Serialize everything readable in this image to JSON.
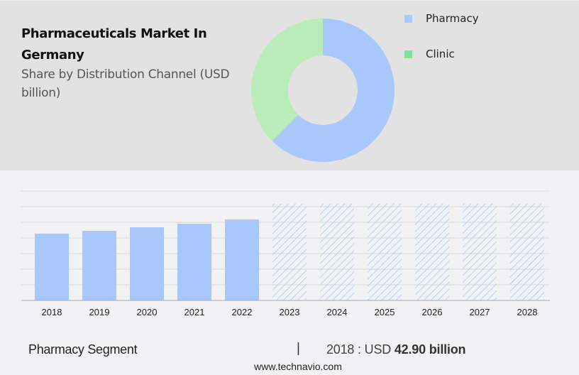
{
  "header": {
    "title": "Pharmaceuticals Market In Germany",
    "subtitle": "Share by Distribution Channel (USD billion)"
  },
  "legend": {
    "items": [
      {
        "label": "Pharmacy",
        "color": "#a8c8fc"
      },
      {
        "label": "Clinic",
        "color": "#7de39a"
      }
    ]
  },
  "footer": {
    "segment": "Pharmacy Segment",
    "separator": "|",
    "value_prefix": "2018 : USD",
    "value_bold": "42.90 billion",
    "url": "www.technavio.com"
  },
  "colors": {
    "top_bg": "#e2e2e2",
    "bottom_bg": "#f2f2f4",
    "bar": "#a8c8fc",
    "donut_pharmacy": "#a8c8fc",
    "donut_clinic": "#b9ecb9",
    "grid": "#d8d8d8"
  },
  "chart_data": [
    {
      "type": "pie",
      "title": "Pharmaceuticals Market In Germany - Share by Distribution Channel (USD billion)",
      "donut": true,
      "labels": [
        "Pharmacy",
        "Clinic"
      ],
      "values": [
        62.5,
        37.5
      ],
      "units": "% share (estimated from arc)",
      "legend_position": "right"
    },
    {
      "type": "bar",
      "title": "Pharmacy Segment",
      "categories": [
        "2018",
        "2019",
        "2020",
        "2021",
        "2022",
        "2023",
        "2024",
        "2025",
        "2026",
        "2027",
        "2028"
      ],
      "values": [
        42.9,
        44.7,
        47.0,
        49.3,
        52.0,
        null,
        null,
        null,
        null,
        null,
        null
      ],
      "forecast_placeholder": [
        false,
        false,
        false,
        false,
        false,
        true,
        true,
        true,
        true,
        true,
        true
      ],
      "annotations": [
        "2018 : USD 42.90 billion"
      ],
      "xlabel": "",
      "ylabel": "USD billion",
      "ylim": [
        0,
        70
      ],
      "grid": true,
      "y_ticks_hidden": true
    }
  ]
}
